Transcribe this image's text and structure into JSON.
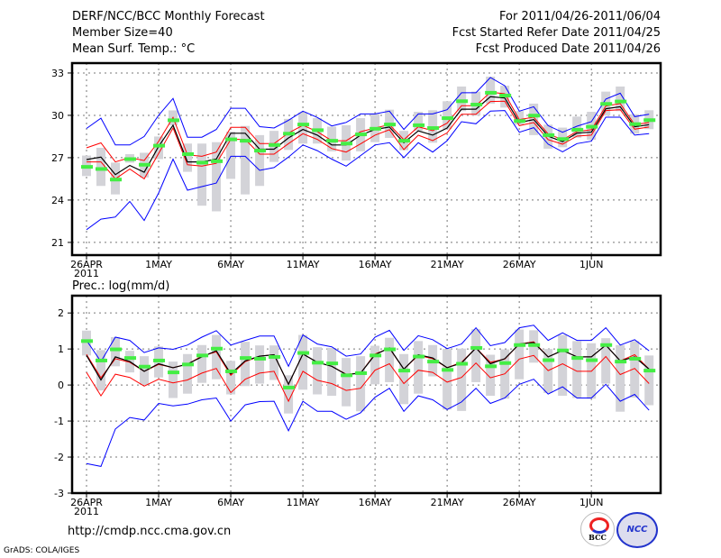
{
  "header": {
    "title": "DERF/NCC/BCC Monthly Forecast",
    "member_size": "Member Size=40",
    "variable": "Mean Surf. Temp.: °C",
    "period": "For 2011/04/26-2011/06/04",
    "started": "Fcst Started Refer Date 2011/04/25",
    "produced": "Fcst Produced Date 2011/04/26"
  },
  "footer": {
    "url": "http://cmdp.ncc.cma.gov.cn",
    "credit": "GrADS: COLA/IGES",
    "logo_bcc": "BCC",
    "logo_ncc": "NCC"
  },
  "colors": {
    "mean": "#000000",
    "spread": "#ff0000",
    "range": "#0000ff",
    "obs": "#44ee44",
    "bar": "#d3d3d8"
  },
  "chart_data": [
    {
      "type": "line",
      "title": "Mean Surf. Temp.: °C",
      "x_tick_labels": [
        "26APR",
        "1MAY",
        "6MAY",
        "11MAY",
        "16MAY",
        "21MAY",
        "26MAY",
        "1JUN"
      ],
      "x_tick_year": "2011",
      "x_tick_every_days": 5,
      "days": 40,
      "ylim": [
        20.1,
        33.7
      ],
      "yticks": [
        "21",
        "24",
        "27",
        "30",
        "33"
      ],
      "grid": true,
      "series": {
        "ensemble_mean": [
          26.87,
          27.04,
          25.8,
          26.45,
          25.97,
          27.8,
          29.3,
          26.7,
          26.7,
          26.9,
          28.73,
          28.73,
          27.6,
          27.6,
          28.4,
          29.0,
          28.6,
          27.9,
          27.9,
          28.6,
          29.0,
          29.17,
          28.06,
          28.9,
          28.6,
          29.1,
          30.44,
          30.44,
          31.32,
          31.23,
          29.49,
          29.7,
          28.53,
          28.13,
          28.74,
          28.81,
          30.47,
          30.61,
          29.19,
          29.34
        ],
        "spread_upper": [
          27.7,
          28.05,
          26.7,
          27.0,
          26.8,
          28.15,
          29.85,
          27.2,
          27.1,
          27.4,
          29.15,
          29.15,
          28.0,
          28.0,
          28.75,
          29.3,
          28.84,
          28.2,
          28.2,
          28.84,
          29.1,
          29.34,
          28.27,
          29.19,
          28.91,
          29.45,
          30.68,
          30.68,
          31.64,
          31.53,
          29.7,
          29.87,
          28.68,
          28.27,
          28.85,
          28.98,
          30.66,
          30.83,
          29.34,
          29.49
        ],
        "spread_lower": [
          26.7,
          26.7,
          25.5,
          26.2,
          25.5,
          27.3,
          29.1,
          26.5,
          26.4,
          26.6,
          28.3,
          28.3,
          27.25,
          27.25,
          28.0,
          28.7,
          28.3,
          27.65,
          27.4,
          27.98,
          28.6,
          28.98,
          27.57,
          28.59,
          28.21,
          28.76,
          30.08,
          30.08,
          30.98,
          31.0,
          29.27,
          29.49,
          28.27,
          27.96,
          28.53,
          28.6,
          30.34,
          30.4,
          29.02,
          29.17
        ],
        "member_max": [
          29.07,
          29.8,
          27.9,
          27.9,
          28.5,
          30.0,
          31.2,
          28.45,
          28.45,
          29.0,
          30.5,
          30.5,
          29.2,
          29.1,
          29.65,
          30.3,
          29.85,
          29.25,
          29.5,
          30.1,
          30.1,
          30.3,
          29.0,
          30.1,
          30.1,
          30.4,
          31.6,
          31.6,
          32.68,
          32.1,
          30.3,
          30.61,
          29.27,
          28.8,
          29.23,
          29.55,
          31.15,
          31.57,
          29.91,
          30.08
        ],
        "member_min": [
          21.9,
          22.65,
          22.8,
          23.9,
          22.55,
          24.5,
          26.9,
          24.7,
          24.95,
          25.2,
          27.1,
          27.1,
          26.1,
          26.3,
          27.05,
          27.9,
          27.5,
          26.9,
          26.4,
          27.15,
          27.9,
          28.06,
          27.0,
          28.06,
          27.4,
          28.2,
          29.55,
          29.4,
          30.3,
          30.34,
          28.8,
          29.13,
          27.96,
          27.42,
          28.0,
          28.17,
          29.87,
          29.87,
          28.6,
          28.7
        ],
        "observed": [
          26.35,
          26.2,
          25.45,
          26.9,
          26.5,
          27.85,
          29.65,
          27.25,
          26.65,
          26.75,
          28.3,
          28.2,
          27.5,
          27.9,
          28.7,
          29.35,
          28.95,
          28.2,
          28.0,
          28.65,
          29.05,
          29.35,
          28.2,
          29.3,
          29.1,
          29.8,
          31.0,
          30.76,
          31.6,
          31.4,
          29.6,
          29.98,
          28.6,
          28.32,
          28.98,
          29.19,
          30.81,
          30.98,
          29.38,
          29.66
        ],
        "bar_high": [
          27.15,
          27.7,
          26.65,
          27.25,
          27.35,
          28.5,
          30.35,
          28.0,
          28.0,
          28.1,
          28.85,
          29.25,
          28.6,
          28.9,
          29.75,
          30.2,
          29.8,
          29.2,
          29.3,
          29.8,
          30.1,
          30.4,
          28.9,
          30.25,
          30.36,
          31.0,
          32.04,
          31.68,
          32.74,
          32.1,
          30.3,
          30.83,
          29.34,
          29.13,
          29.91,
          30.25,
          31.68,
          32.04,
          30.08,
          30.36
        ],
        "bar_low": [
          25.7,
          25.0,
          24.4,
          26.65,
          25.6,
          26.9,
          29.3,
          26.0,
          23.6,
          23.2,
          25.5,
          24.4,
          25.0,
          26.7,
          27.55,
          28.0,
          28.0,
          27.45,
          26.8,
          27.45,
          28.1,
          28.4,
          27.53,
          28.91,
          28.06,
          29.02,
          30.3,
          29.98,
          30.83,
          30.55,
          29.34,
          28.6,
          27.64,
          27.74,
          28.42,
          28.27,
          29.98,
          30.3,
          28.7,
          29.02
        ]
      }
    },
    {
      "type": "line",
      "title": "Prec.: log(mm/d)",
      "x_tick_labels": [
        "26APR",
        "1MAY",
        "6MAY",
        "11MAY",
        "16MAY",
        "21MAY",
        "26MAY",
        "1JUN"
      ],
      "x_tick_year": "2011",
      "x_tick_every_days": 5,
      "days": 40,
      "ylim": [
        -3,
        2.48
      ],
      "yticks": [
        "-3",
        "-2",
        "-1",
        "0",
        "1",
        "2"
      ],
      "grid": true,
      "series": {
        "ensemble_mean": [
          0.82,
          0.14,
          0.78,
          0.65,
          0.38,
          0.59,
          0.48,
          0.58,
          0.78,
          0.95,
          0.31,
          0.67,
          0.8,
          0.84,
          0.02,
          0.86,
          0.63,
          0.52,
          0.29,
          0.33,
          0.84,
          1.03,
          0.44,
          0.84,
          0.75,
          0.48,
          0.61,
          1.03,
          0.59,
          0.73,
          1.14,
          1.18,
          0.78,
          0.96,
          0.78,
          0.78,
          1.11,
          0.67,
          0.78,
          0.44
        ],
        "spread_upper": [
          0.85,
          0.2,
          0.73,
          0.63,
          0.38,
          0.57,
          0.48,
          0.58,
          0.8,
          0.92,
          0.27,
          0.65,
          0.8,
          0.84,
          0.02,
          0.86,
          0.63,
          0.52,
          0.3,
          0.33,
          0.86,
          1.02,
          0.44,
          0.82,
          0.73,
          0.48,
          0.63,
          1.03,
          0.63,
          0.72,
          1.14,
          1.2,
          0.78,
          0.96,
          0.78,
          0.78,
          1.11,
          0.67,
          0.84,
          0.44
        ],
        "spread_lower": [
          0.35,
          -0.3,
          0.3,
          0.21,
          -0.03,
          0.16,
          0.06,
          0.14,
          0.33,
          0.46,
          -0.21,
          0.16,
          0.33,
          0.38,
          -0.45,
          0.38,
          0.13,
          0.04,
          -0.15,
          -0.09,
          0.41,
          0.59,
          0.04,
          0.41,
          0.35,
          0.08,
          0.21,
          0.61,
          0.2,
          0.31,
          0.72,
          0.82,
          0.4,
          0.59,
          0.38,
          0.38,
          0.79,
          0.29,
          0.46,
          0.04
        ],
        "member_max": [
          1.24,
          0.65,
          1.33,
          1.24,
          0.9,
          1.03,
          0.99,
          1.11,
          1.33,
          1.51,
          1.11,
          1.24,
          1.36,
          1.36,
          0.52,
          1.39,
          1.14,
          1.06,
          0.8,
          0.86,
          1.33,
          1.52,
          0.96,
          1.37,
          1.26,
          1.01,
          1.14,
          1.59,
          1.09,
          1.18,
          1.59,
          1.66,
          1.24,
          1.45,
          1.24,
          1.24,
          1.59,
          1.11,
          1.26,
          0.95
        ],
        "member_min": [
          -2.18,
          -2.26,
          -1.22,
          -0.9,
          -0.97,
          -0.51,
          -0.58,
          -0.53,
          -0.41,
          -0.36,
          -1.0,
          -0.55,
          -0.46,
          -0.45,
          -1.27,
          -0.45,
          -0.73,
          -0.73,
          -0.95,
          -0.77,
          -0.34,
          -0.09,
          -0.73,
          -0.3,
          -0.41,
          -0.68,
          -0.47,
          -0.09,
          -0.51,
          -0.36,
          0.02,
          0.16,
          -0.25,
          -0.05,
          -0.36,
          -0.36,
          0.02,
          -0.45,
          -0.26,
          -0.7
        ],
        "observed": [
          1.22,
          0.68,
          0.99,
          0.75,
          0.51,
          0.68,
          0.35,
          0.57,
          0.82,
          1.01,
          0.38,
          0.75,
          0.73,
          0.78,
          -0.07,
          0.89,
          0.62,
          0.6,
          0.27,
          0.33,
          0.82,
          0.99,
          0.4,
          0.79,
          0.65,
          0.42,
          0.59,
          1.03,
          0.52,
          0.61,
          1.11,
          1.11,
          0.69,
          0.96,
          0.75,
          0.69,
          1.11,
          0.65,
          0.73,
          0.4
        ],
        "bar_high": [
          1.51,
          0.97,
          1.33,
          0.95,
          0.8,
          1.07,
          0.65,
          0.86,
          1.11,
          1.39,
          0.67,
          1.2,
          1.1,
          1.1,
          0.27,
          1.39,
          1.05,
          1.03,
          0.75,
          0.8,
          1.09,
          1.31,
          0.86,
          1.22,
          1.11,
          1.0,
          1.01,
          1.55,
          0.84,
          0.99,
          1.54,
          1.52,
          1.0,
          1.39,
          1.22,
          1.16,
          1.3,
          1.11,
          1.22,
          0.82
        ],
        "bar_low": [
          0.82,
          -0.15,
          0.52,
          0.35,
          0.0,
          0.21,
          -0.36,
          -0.24,
          0.06,
          0.16,
          -0.26,
          -0.03,
          0.04,
          0.14,
          -0.79,
          -0.13,
          -0.26,
          -0.3,
          -0.59,
          -0.73,
          0.02,
          0.08,
          -0.53,
          -0.24,
          0.24,
          -0.68,
          -0.72,
          0.08,
          -0.3,
          -0.38,
          0.16,
          0.62,
          -0.22,
          -0.3,
          -0.36,
          -0.38,
          0.04,
          -0.74,
          -0.35,
          -0.56
        ]
      }
    }
  ]
}
